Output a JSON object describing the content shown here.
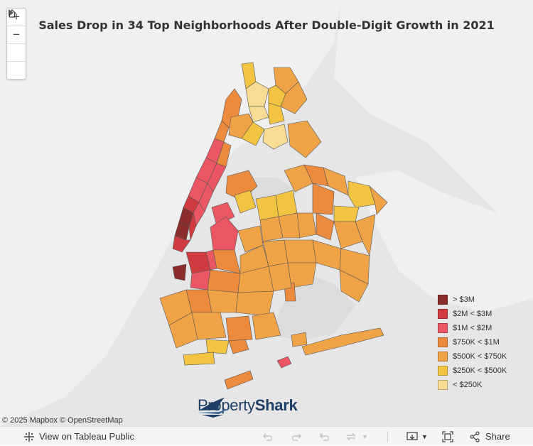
{
  "title": "Sales Drop in 34 Top Neighborhoods After Double-Digit Growth in 2021",
  "zoom": {
    "in_icon": "plus-icon",
    "out_icon": "minus-icon",
    "home_icon": "home-icon",
    "expand_icon": "play-icon"
  },
  "legend": {
    "items": [
      {
        "label": "> $3M",
        "color": "#8c2d2d"
      },
      {
        "label": "$2M < $3M",
        "color": "#cf3b3f"
      },
      {
        "label": "$1M < $2M",
        "color": "#ea5662"
      },
      {
        "label": "$750K < $1M",
        "color": "#ec8a3e"
      },
      {
        "label": "$500K < $750K",
        "color": "#f0a346"
      },
      {
        "label": "$250K < $500K",
        "color": "#f3c441"
      },
      {
        "label": "< $250K",
        "color": "#f8dc93"
      }
    ]
  },
  "attribution": "© 2025 Mapbox  © OpenStreetMap",
  "logo": {
    "text_regular": "Property",
    "text_bold": "Shark"
  },
  "toolbar": {
    "view_label": "View on Tableau Public",
    "share_label": "Share",
    "icons": [
      "tableau-icon",
      "undo-icon",
      "redo-icon",
      "revert-icon",
      "refresh-icon",
      "download-icon",
      "fullscreen-icon",
      "share-icon"
    ]
  },
  "colors": {
    "map_bg": "#e6e6e6",
    "land": "#f1f1f1",
    "border": "#555555"
  }
}
